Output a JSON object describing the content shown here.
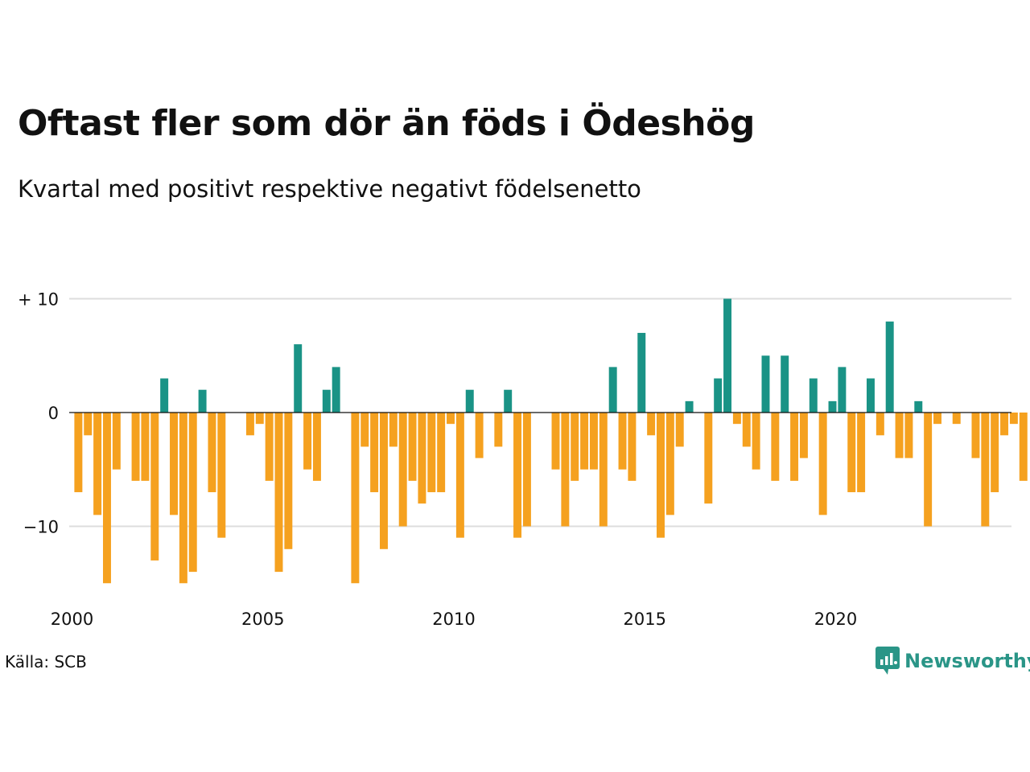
{
  "header": {
    "title": "Oftast fler som dör än föds i Ödeshög",
    "subtitle": "Kvartal med positivt respektive negativt födelsenetto"
  },
  "footer": {
    "source": "Källa: SCB",
    "brand": "Newsworthy"
  },
  "colors": {
    "positive": "#1a9386",
    "negative": "#f5a11f",
    "grid": "#dddddd",
    "text": "#111111"
  },
  "chart_data": {
    "type": "bar",
    "y_tick_labels": [
      "+ 10",
      "0",
      "−10"
    ],
    "y_ticks": [
      10,
      0,
      -10
    ],
    "x_tick_labels": [
      "2000",
      "2005",
      "2010",
      "2015",
      "2020"
    ],
    "x_ticks": [
      2000,
      2005,
      2010,
      2015,
      2020
    ],
    "ylim": [
      -15,
      10
    ],
    "x_start": 2000.0,
    "quarter_width": 0.25,
    "grid": true,
    "values": [
      -7,
      -2,
      -9,
      -15,
      -5,
      0,
      -6,
      -6,
      -13,
      3,
      -9,
      -15,
      -14,
      2,
      -7,
      -11,
      0,
      0,
      -2,
      -1,
      -6,
      -14,
      -12,
      6,
      -5,
      -6,
      2,
      4,
      0,
      -15,
      -3,
      -7,
      -12,
      -3,
      -10,
      -6,
      -8,
      -7,
      -7,
      -1,
      -11,
      2,
      -4,
      0,
      -3,
      2,
      -11,
      -10,
      0,
      0,
      -5,
      -10,
      -6,
      -5,
      -5,
      -10,
      4,
      -5,
      -6,
      7,
      -2,
      -11,
      -9,
      -3,
      1,
      0,
      -8,
      3,
      10,
      -1,
      -3,
      -5,
      5,
      -6,
      5,
      -6,
      -4,
      3,
      -9,
      1,
      4,
      -7,
      -7,
      3,
      -2,
      8,
      -4,
      -4,
      1,
      -10,
      -1,
      0,
      -1,
      0,
      -4,
      -10,
      -7,
      -2,
      -1,
      -6
    ]
  }
}
